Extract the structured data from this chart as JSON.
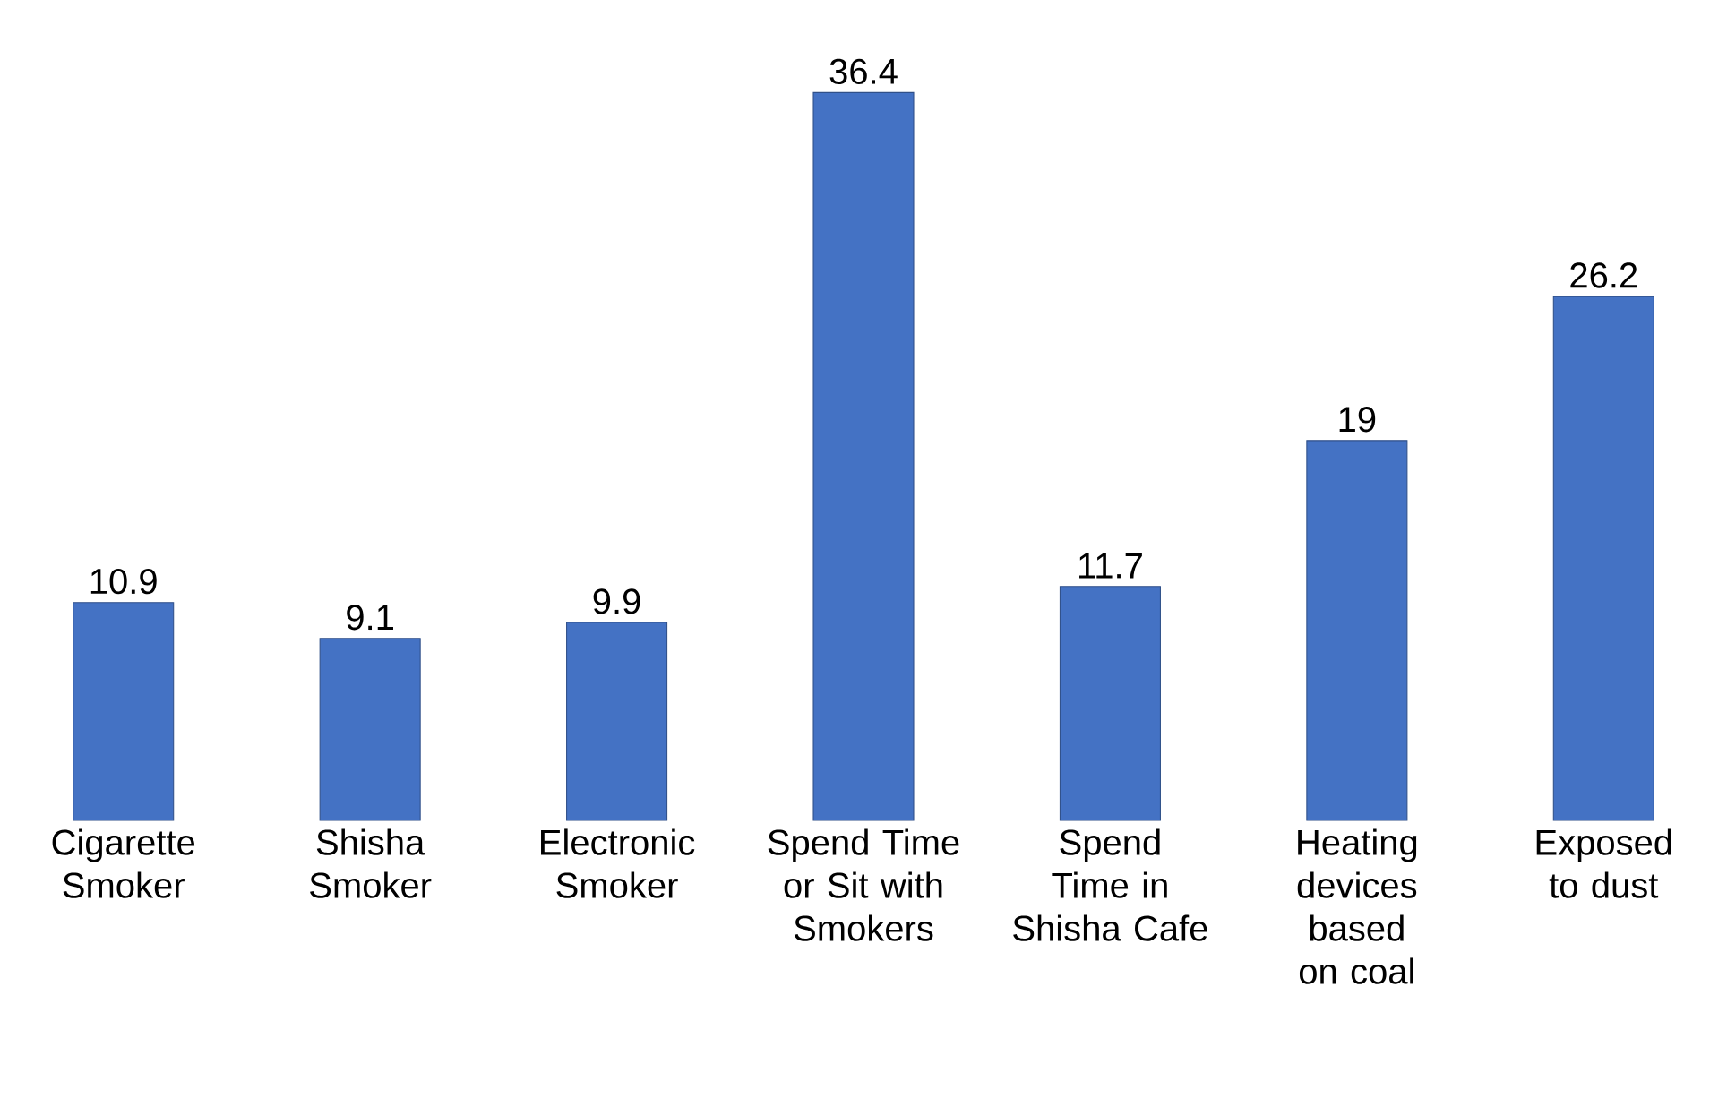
{
  "chart_data": {
    "type": "bar",
    "categories": [
      "Cigarette Smoker",
      "Shisha Smoker",
      "Electronic Smoker",
      "Spend Time or Sit with Smokers",
      "Spend Time in Shisha Cafe",
      "Heating devices based on coal",
      "Exposed to dust"
    ],
    "values": [
      10.9,
      9.1,
      9.9,
      36.4,
      11.7,
      19,
      26.2
    ],
    "color": "#4472c4",
    "data_labels": true
  }
}
